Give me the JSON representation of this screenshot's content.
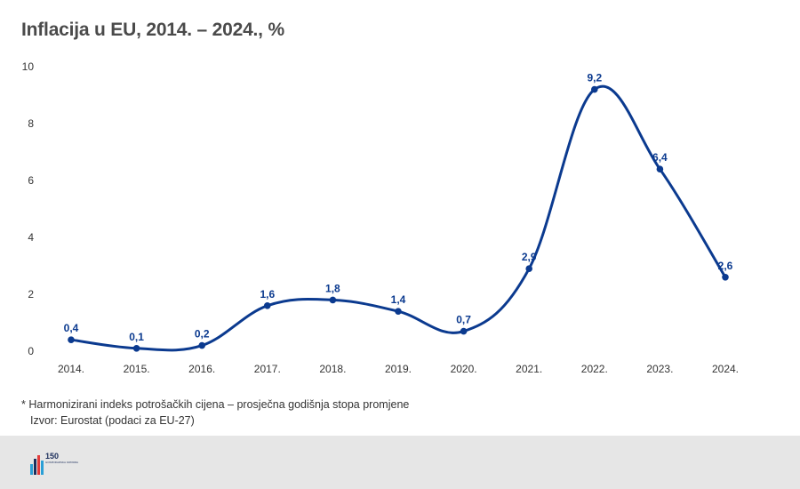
{
  "header": {
    "title": "Inflacija u EU, 2014. – 2024., %"
  },
  "chart_data": {
    "type": "line",
    "title": "Inflacija u EU, 2014. – 2024., %",
    "xlabel": "",
    "ylabel": "",
    "categories": [
      "2014.",
      "2015.",
      "2016.",
      "2017.",
      "2018.",
      "2019.",
      "2020.",
      "2021.",
      "2022.",
      "2023.",
      "2024."
    ],
    "series": [
      {
        "values": [
          0.4,
          0.1,
          0.2,
          1.6,
          1.8,
          1.4,
          0.7,
          2.9,
          9.2,
          6.4,
          2.6
        ],
        "data_labels": [
          "0,4",
          "0,1",
          "0,2",
          "1,6",
          "1,8",
          "1,4",
          "0,7",
          "2,9",
          "9,2",
          "6,4",
          "2,6"
        ],
        "color": "#0b3a8f"
      }
    ],
    "yticks": [
      "0",
      "2",
      "4",
      "6",
      "8",
      "10"
    ],
    "ylim": [
      0,
      10
    ],
    "grid": false,
    "legend": "none"
  },
  "notes": {
    "footnote": "* Harmonizirani indeks potrošačkih cijena – prosječna godišnja stopa promjene",
    "source": "Izvor: Eurostat (podaci za EU-27)"
  },
  "footer": {
    "logo_number": "150",
    "logo_text": "GOSPODARSKA KOMORA",
    "logo_colors": [
      "#2a9fd6",
      "#1d2f5c",
      "#e23a3a"
    ]
  }
}
